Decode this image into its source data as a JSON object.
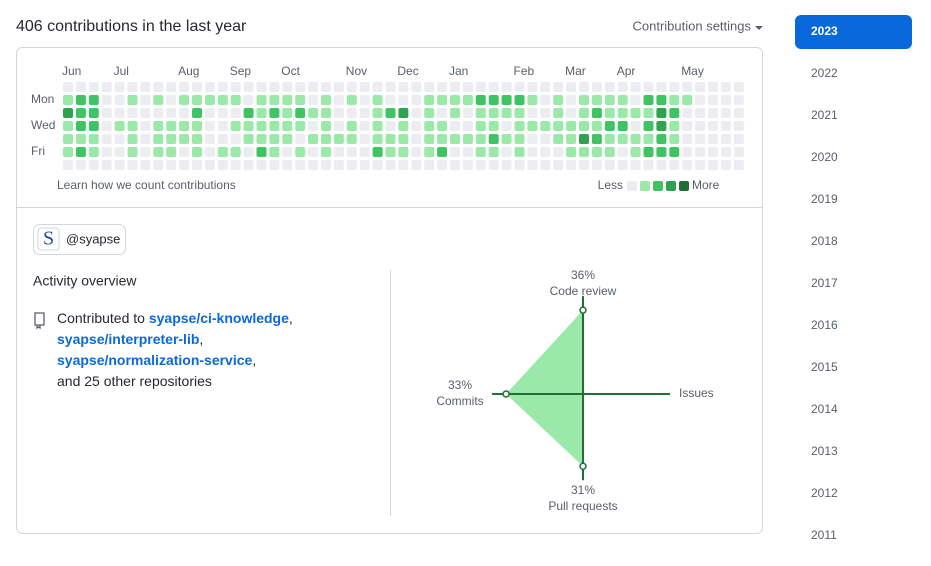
{
  "header": {
    "title": "406 contributions in the last year",
    "settings": "Contribution settings"
  },
  "calendar": {
    "months": [
      "Jun",
      "Jul",
      "Aug",
      "Sep",
      "Oct",
      "Nov",
      "Dec",
      "Jan",
      "Feb",
      "Mar",
      "Apr",
      "May"
    ],
    "days": [
      "Mon",
      "Wed",
      "Fri"
    ],
    "weeks": [
      [
        0,
        1,
        3,
        1,
        1,
        1,
        0
      ],
      [
        0,
        2,
        2,
        2,
        1,
        2,
        0
      ],
      [
        0,
        2,
        2,
        2,
        1,
        1,
        0
      ],
      [
        0,
        0,
        0,
        0,
        0,
        0,
        0
      ],
      [
        0,
        0,
        0,
        1,
        0,
        0,
        0
      ],
      [
        0,
        1,
        0,
        1,
        1,
        1,
        0
      ],
      [
        0,
        0,
        0,
        0,
        0,
        0,
        0
      ],
      [
        0,
        1,
        0,
        1,
        1,
        1,
        0
      ],
      [
        0,
        0,
        0,
        1,
        1,
        1,
        0
      ],
      [
        0,
        1,
        0,
        1,
        1,
        0,
        0
      ],
      [
        0,
        1,
        2,
        1,
        1,
        1,
        0
      ],
      [
        0,
        1,
        0,
        0,
        0,
        0,
        0
      ],
      [
        0,
        1,
        0,
        0,
        0,
        1,
        0
      ],
      [
        0,
        1,
        0,
        1,
        0,
        1,
        0
      ],
      [
        0,
        0,
        2,
        1,
        1,
        0,
        0
      ],
      [
        0,
        1,
        1,
        1,
        1,
        2,
        0
      ],
      [
        0,
        1,
        2,
        1,
        1,
        1,
        0
      ],
      [
        0,
        1,
        1,
        1,
        1,
        0,
        0
      ],
      [
        0,
        1,
        2,
        1,
        0,
        1,
        0
      ],
      [
        0,
        0,
        1,
        0,
        1,
        0,
        0
      ],
      [
        0,
        1,
        1,
        1,
        1,
        1,
        0
      ],
      [
        0,
        0,
        0,
        0,
        1,
        0,
        0
      ],
      [
        0,
        1,
        0,
        1,
        1,
        0,
        0
      ],
      [
        0,
        0,
        0,
        0,
        0,
        0,
        0
      ],
      [
        0,
        1,
        1,
        1,
        1,
        2,
        0
      ],
      [
        0,
        0,
        2,
        0,
        1,
        1,
        0
      ],
      [
        0,
        0,
        3,
        1,
        1,
        1,
        0
      ],
      [
        0,
        0,
        0,
        0,
        0,
        0,
        0
      ],
      [
        0,
        1,
        1,
        1,
        1,
        1,
        0
      ],
      [
        0,
        1,
        0,
        1,
        1,
        2,
        0
      ],
      [
        0,
        1,
        1,
        0,
        1,
        0,
        0
      ],
      [
        0,
        1,
        0,
        0,
        1,
        0,
        0
      ],
      [
        0,
        2,
        1,
        1,
        1,
        1,
        0
      ],
      [
        0,
        2,
        1,
        1,
        2,
        1,
        0
      ],
      [
        0,
        2,
        1,
        0,
        1,
        0,
        0
      ],
      [
        0,
        2,
        1,
        1,
        1,
        1,
        0
      ],
      [
        0,
        1,
        0,
        1,
        0,
        0,
        0
      ],
      [
        0,
        0,
        0,
        1,
        0,
        0,
        0
      ],
      [
        0,
        1,
        1,
        1,
        1,
        0,
        0
      ],
      [
        0,
        0,
        0,
        1,
        1,
        1,
        0
      ],
      [
        0,
        1,
        1,
        1,
        3,
        1,
        0
      ],
      [
        0,
        1,
        2,
        1,
        2,
        1,
        0
      ],
      [
        0,
        1,
        1,
        2,
        1,
        1,
        0
      ],
      [
        0,
        1,
        1,
        2,
        1,
        0,
        0
      ],
      [
        0,
        0,
        1,
        0,
        1,
        1,
        0
      ],
      [
        0,
        2,
        1,
        2,
        1,
        2,
        0
      ],
      [
        0,
        2,
        3,
        3,
        2,
        2,
        0
      ],
      [
        0,
        1,
        2,
        1,
        1,
        2,
        0
      ],
      [
        0,
        1,
        0,
        0,
        0,
        0,
        0
      ],
      [
        0,
        0,
        0,
        0,
        0,
        0,
        0
      ],
      [
        0,
        0,
        0,
        0,
        0,
        0,
        0
      ],
      [
        0,
        0,
        0,
        0,
        0,
        0,
        0
      ],
      [
        0,
        0,
        0,
        0,
        0,
        0,
        0
      ]
    ],
    "level_colors": [
      "#ebedf0",
      "#9be9a8",
      "#40c463",
      "#30a14e",
      "#216e39"
    ],
    "footer": "Learn how we count contributions",
    "less": "Less",
    "more": "More"
  },
  "org": {
    "initial": "S",
    "handle": "@syapse"
  },
  "activity": {
    "title": "Activity overview",
    "prefix": "Contributed to",
    "repos": [
      "syapse/ci-knowledge",
      "syapse/interpreter-lib",
      "syapse/normalization-service"
    ],
    "separator": ",",
    "suffix": "and 25 other repositories"
  },
  "radar": {
    "axes": [
      {
        "label": "Code review",
        "value": 36,
        "value_label": "36%"
      },
      {
        "label": "Issues"
      },
      {
        "label": "Pull requests",
        "value": 31,
        "value_label": "31%"
      },
      {
        "label": "Commits",
        "value": 33,
        "value_label": "33%"
      }
    ]
  },
  "years": {
    "items": [
      "2023",
      "2022",
      "2021",
      "2020",
      "2019",
      "2018",
      "2017",
      "2016",
      "2015",
      "2014",
      "2013",
      "2012",
      "2011"
    ],
    "selected": 0
  }
}
